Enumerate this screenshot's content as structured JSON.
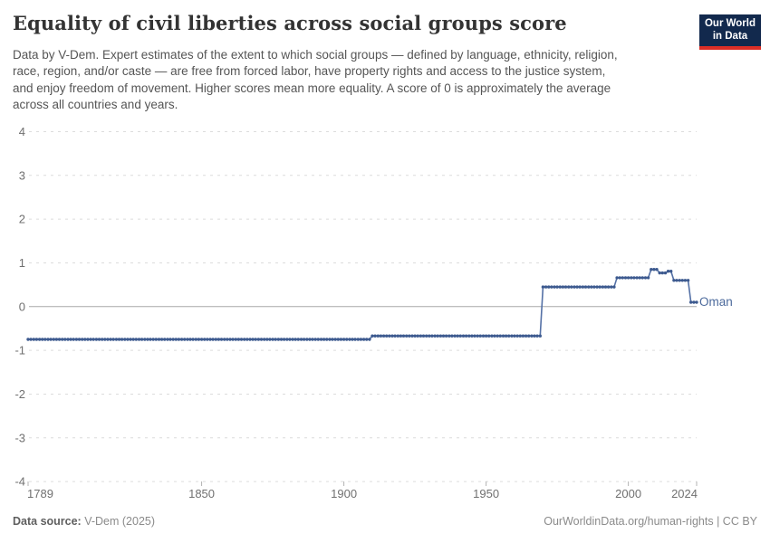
{
  "header": {
    "title": "Equality of civil liberties across social groups score",
    "subtitle_lines": [
      "Data by V-Dem. Expert estimates of the extent to which social groups — defined by language, ethnicity, religion,",
      "race, region, and/or caste — are free from forced labor, have property rights and access to the justice system,",
      "and enjoy freedom of movement. Higher scores mean more equality. A score of 0 is approximately the average",
      "across all countries and years."
    ],
    "logo": {
      "line1": "Our World",
      "line2": "in Data",
      "bg_color": "#12294d",
      "accent_color": "#dc2e26"
    }
  },
  "footer": {
    "source_label": "Data source:",
    "source_value": " V-Dem (2025)",
    "credit": "OurWorldinData.org/human-rights | CC BY"
  },
  "chart_data": {
    "type": "line",
    "title": "Equality of civil liberties across social groups score",
    "subtitle": "Data by V-Dem. Expert estimates of the extent to which social groups — defined by language, ethnicity, religion, race, region, and/or caste — are free from forced labor, have property rights and access to the justice system, and enjoy freedom of movement. Higher scores mean more equality. A score of 0 is approximately the average across all countries and years.",
    "xlabel": "",
    "ylabel": "",
    "x": {
      "min": 1789,
      "max": 2024,
      "ticks": [
        1789,
        1850,
        1900,
        1950,
        2000,
        2024
      ]
    },
    "y": {
      "min": -4,
      "max": 4,
      "ticks": [
        4,
        3,
        2,
        1,
        0,
        -1,
        -2,
        -3,
        -4
      ]
    },
    "grid": true,
    "legend_position": "end-of-line-label",
    "series": [
      {
        "name": "Oman",
        "color": "#5571a6",
        "marker_color": "#3d5a8f",
        "step_points": [
          [
            1789,
            -0.75
          ],
          [
            1910,
            -0.67
          ],
          [
            1970,
            0.45
          ],
          [
            1996,
            0.66
          ],
          [
            2008,
            0.85
          ],
          [
            2011,
            0.77
          ],
          [
            2014,
            0.81
          ],
          [
            2016,
            0.6
          ],
          [
            2022,
            0.1
          ],
          [
            2024,
            0.1
          ]
        ]
      }
    ],
    "colors": {
      "grid": "#dcdcdc",
      "zero_line": "#a8a8a8",
      "axis_text": "#707070",
      "tick_mark": "#b3b3b3"
    }
  }
}
